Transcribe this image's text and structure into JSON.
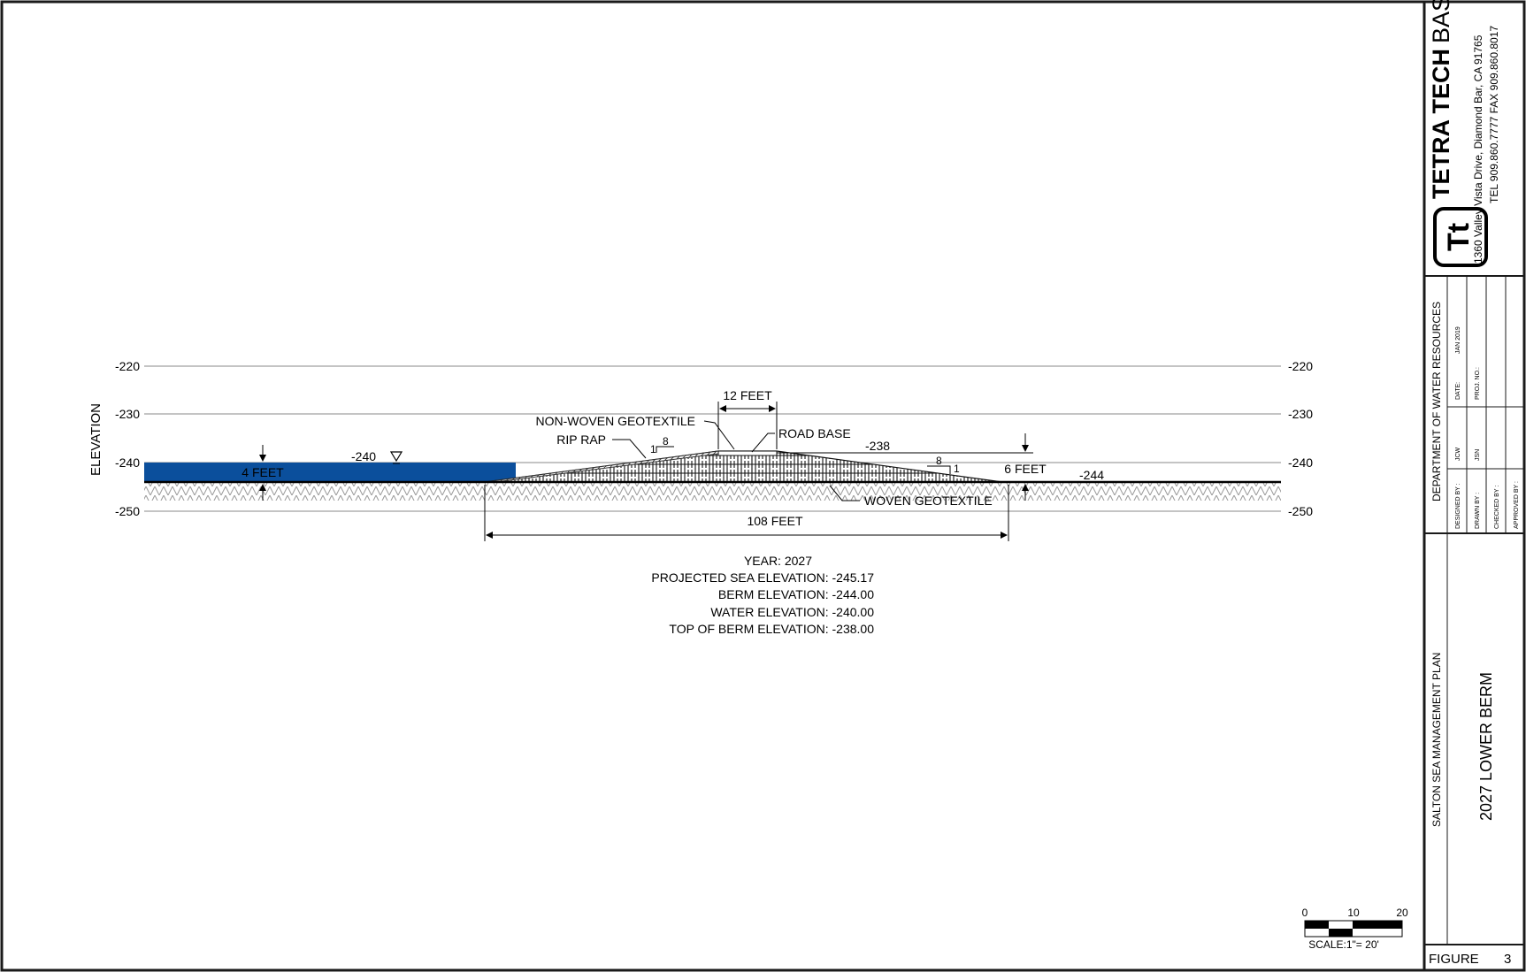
{
  "diagram": {
    "axis_label": "ELEVATION",
    "elevation_ticks": [
      "-220",
      "-230",
      "-240",
      "-250"
    ],
    "labels": {
      "width_top": "12 FEET",
      "non_woven": "NON-WOVEN GEOTEXTILE",
      "rip_rap": "RIP RAP",
      "road_base": "ROAD BASE",
      "elev_238": "-238",
      "elev_240_water": "-240",
      "water_depth": "4 FEET",
      "slope_left_rise": "1",
      "slope_left_run": "8",
      "slope_right_run": "8",
      "slope_right_rise": "1",
      "berm_height": "6 FEET",
      "elev_244": "-244",
      "woven": "WOVEN GEOTEXTILE",
      "base_width": "108 FEET"
    },
    "notes": [
      "YEAR: 2027",
      "PROJECTED SEA ELEVATION: -245.17",
      "BERM ELEVATION: -244.00",
      "WATER ELEVATION: -240.00",
      "TOP OF BERM ELEVATION: -238.00"
    ],
    "scale": {
      "ticks": [
        "0",
        "10",
        "20"
      ],
      "label": "SCALE:1\"= 20'"
    },
    "colors": {
      "water": "#0b4f9c",
      "border": "#1a1a1a"
    }
  },
  "title_block": {
    "company": "TETRA TECH",
    "company_suffix": "BAS",
    "logo_text": "Tt",
    "address": "1360 Valley Vista Drive, Diamond Bar, CA 91765",
    "phone": "TEL 909.860.7777 FAX 909.860.8017",
    "client": "DEPARTMENT OF WATER RESOURCES",
    "designed_by_label": "DESIGNED BY :",
    "designed_by": "JCW",
    "drawn_by_label": "DRAWN BY :",
    "drawn_by": "JSN",
    "checked_by_label": "CHECKED BY :",
    "approved_by_label": "APPROVED BY :",
    "date_label": "DATE:",
    "date": "JAN 2019",
    "proj_no_label": "PROJ. NO.:",
    "project": "SALTON SEA MANAGEMENT PLAN",
    "drawing_title": "2027 LOWER BERM",
    "figure_label": "FIGURE",
    "figure_number": "3"
  }
}
